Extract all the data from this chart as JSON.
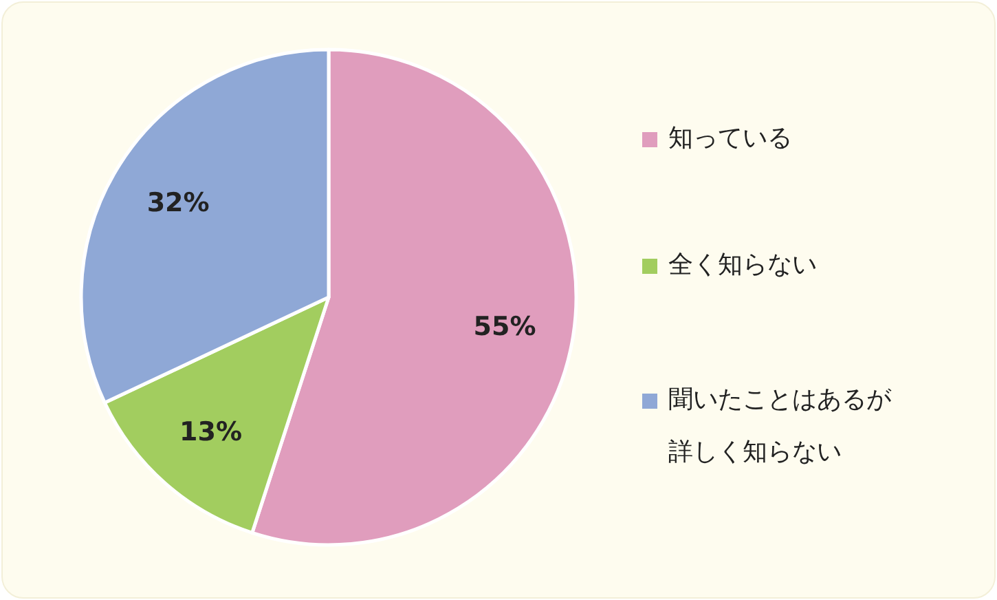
{
  "chart_data": {
    "type": "pie",
    "categories": [
      "知っている",
      "全く知らない",
      "聞いたことはあるが詳しく知らない"
    ],
    "values": [
      55,
      13,
      32
    ],
    "colors": [
      "#e09dbd",
      "#a2cd5f",
      "#8fa8d6"
    ],
    "value_labels": [
      "55%",
      "13%",
      "32%"
    ],
    "legend": "right"
  }
}
